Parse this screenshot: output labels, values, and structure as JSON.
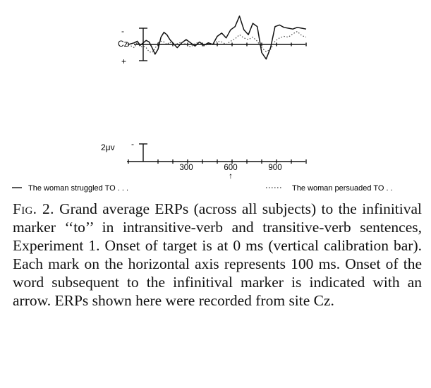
{
  "figure": {
    "electrode_label": "Cz",
    "minus_sign": "-",
    "plus_sign": "+",
    "calibration_label": "2μv",
    "calibration_minus": "-",
    "tick_labels": [
      "300",
      "600",
      "900"
    ],
    "onset_arrow": "↑",
    "legend": [
      {
        "name": "The woman struggled TO . . .",
        "style": "solid"
      },
      {
        "name": "The woman persuaded TO . .",
        "style": "dotted"
      }
    ]
  },
  "chart_data": {
    "type": "line",
    "xlabel": "",
    "ylabel": "",
    "x_tick_labels": [
      300,
      600,
      900
    ],
    "x_step_ms": 100,
    "x_range_ms": [
      -100,
      1100
    ],
    "onset_next_word_ms": 600,
    "calibration_uv": 2,
    "series": [
      {
        "name": "The woman struggled TO . . .",
        "style": "solid",
        "x": [
          -100,
          -60,
          -40,
          -20,
          0,
          20,
          40,
          60,
          80,
          100,
          120,
          140,
          160,
          180,
          200,
          230,
          260,
          290,
          320,
          350,
          380,
          410,
          440,
          470,
          500,
          530,
          560,
          590,
          620,
          650,
          680,
          710,
          740,
          770,
          800,
          830,
          860,
          890,
          920,
          950,
          980,
          1010,
          1040,
          1070,
          1100
        ],
        "y": [
          0.0,
          0.2,
          0.4,
          -0.1,
          0.2,
          0.5,
          0.3,
          -0.4,
          -1.2,
          -0.6,
          0.9,
          1.5,
          1.2,
          0.6,
          0.2,
          -0.4,
          0.2,
          0.6,
          0.2,
          -0.2,
          0.3,
          -0.1,
          0.2,
          0.0,
          1.0,
          1.4,
          0.8,
          1.8,
          2.2,
          3.5,
          1.8,
          1.2,
          2.6,
          2.2,
          -1.0,
          -1.8,
          -0.4,
          2.2,
          2.4,
          2.1,
          2.0,
          1.9,
          2.1,
          2.0,
          1.9
        ]
      },
      {
        "name": "The woman persuaded TO . .",
        "style": "dotted",
        "x": [
          -100,
          -60,
          -40,
          -20,
          0,
          20,
          40,
          60,
          80,
          100,
          120,
          140,
          160,
          180,
          200,
          230,
          260,
          290,
          320,
          350,
          380,
          410,
          440,
          470,
          500,
          530,
          560,
          590,
          620,
          650,
          680,
          710,
          740,
          770,
          800,
          830,
          860,
          890,
          920,
          950,
          980,
          1010,
          1040,
          1070,
          1100
        ],
        "y": [
          0.0,
          -0.4,
          0.3,
          -0.3,
          -0.2,
          -0.4,
          -0.9,
          -1.0,
          -0.5,
          0.2,
          0.4,
          0.3,
          0.0,
          0.3,
          -0.1,
          0.1,
          0.3,
          0.0,
          -0.3,
          0.1,
          0.3,
          -0.2,
          0.1,
          0.0,
          0.4,
          0.3,
          0.0,
          0.4,
          0.7,
          1.2,
          0.8,
          0.6,
          0.9,
          0.4,
          -0.4,
          -0.9,
          -0.6,
          0.4,
          0.8,
          1.0,
          0.9,
          1.3,
          1.6,
          1.1,
          0.9
        ]
      }
    ]
  },
  "caption": {
    "label": "Fig. 2.",
    "text": "Grand average ERPs (across all subjects) to the infinitival marker ‘‘to’’ in intransitive-verb and transitive-verb sentences, Experiment 1. Onset of target is at 0 ms (vertical calibration bar). Each mark on the horizontal axis represents 100 ms. Onset of the word subsequent to the infinitival marker is indicated with an arrow. ERPs shown here were recorded from site Cz."
  }
}
